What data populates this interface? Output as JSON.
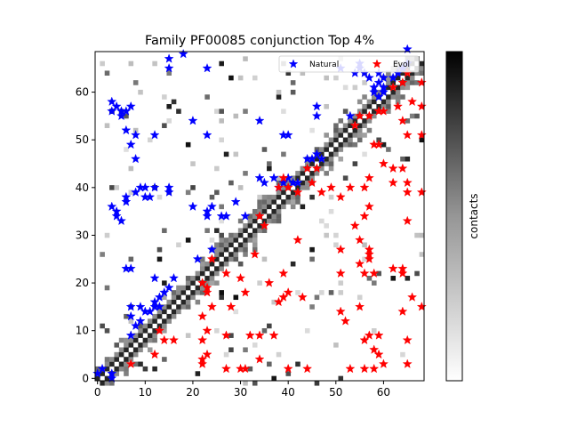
{
  "chart_data": {
    "type": "heatmap",
    "title": "Family PF00085 conjunction Top 4%",
    "xlim": [
      -0.5,
      68.5
    ],
    "ylim": [
      68.5,
      -0.5
    ],
    "xticks": [
      0,
      10,
      20,
      30,
      40,
      50,
      60
    ],
    "yticks": [
      0,
      10,
      20,
      30,
      40,
      50,
      60
    ],
    "colorbar_label": "contacts",
    "colormap": "Greys",
    "legend": {
      "location": "upper right",
      "entries": [
        {
          "label": "Natural",
          "color": "#0000ff",
          "marker": "star"
        },
        {
          "label": "Evol",
          "color": "#ff0000",
          "marker": "star"
        }
      ]
    },
    "series": [
      {
        "name": "Natural",
        "color": "#0000ff",
        "points": [
          [
            0,
            1
          ],
          [
            1,
            2
          ],
          [
            3,
            1
          ],
          [
            3,
            0
          ],
          [
            7,
            9
          ],
          [
            8,
            11
          ],
          [
            9,
            12
          ],
          [
            7,
            13
          ],
          [
            7,
            15
          ],
          [
            9,
            15
          ],
          [
            10,
            14
          ],
          [
            11,
            14
          ],
          [
            12,
            15
          ],
          [
            12,
            16
          ],
          [
            13,
            15
          ],
          [
            13,
            17
          ],
          [
            14,
            18
          ],
          [
            15,
            19
          ],
          [
            16,
            21
          ],
          [
            12,
            21
          ],
          [
            7,
            23
          ],
          [
            6,
            23
          ],
          [
            21,
            25
          ],
          [
            24,
            27
          ],
          [
            23,
            34
          ],
          [
            23,
            35
          ],
          [
            24,
            36
          ],
          [
            26,
            34
          ],
          [
            27,
            34
          ],
          [
            31,
            34
          ],
          [
            29,
            37
          ],
          [
            20,
            36
          ],
          [
            5,
            33
          ],
          [
            4,
            34
          ],
          [
            4,
            35
          ],
          [
            3,
            36
          ],
          [
            6,
            37
          ],
          [
            6,
            38
          ],
          [
            8,
            39
          ],
          [
            9,
            40
          ],
          [
            10,
            40
          ],
          [
            11,
            38
          ],
          [
            12,
            40
          ],
          [
            15,
            39
          ],
          [
            15,
            40
          ],
          [
            10,
            38
          ],
          [
            38,
            40
          ],
          [
            39,
            41
          ],
          [
            37,
            42
          ],
          [
            40,
            42
          ],
          [
            41,
            41
          ],
          [
            42,
            41
          ],
          [
            34,
            42
          ],
          [
            35,
            41
          ],
          [
            44,
            46
          ],
          [
            45,
            46
          ],
          [
            46,
            47
          ],
          [
            47,
            46
          ],
          [
            8,
            46
          ],
          [
            7,
            49
          ],
          [
            8,
            51
          ],
          [
            12,
            51
          ],
          [
            23,
            51
          ],
          [
            20,
            54
          ],
          [
            34,
            54
          ],
          [
            39,
            51
          ],
          [
            40,
            51
          ],
          [
            46,
            55
          ],
          [
            46,
            57
          ],
          [
            53,
            55
          ],
          [
            3,
            56
          ],
          [
            5,
            55
          ],
          [
            5,
            56
          ],
          [
            6,
            56
          ],
          [
            7,
            57
          ],
          [
            3,
            58
          ],
          [
            4,
            57
          ],
          [
            6,
            52
          ],
          [
            58,
            60
          ],
          [
            59,
            59
          ],
          [
            60,
            60
          ],
          [
            58,
            61
          ],
          [
            59,
            62
          ],
          [
            60,
            61
          ],
          [
            59,
            64
          ],
          [
            57,
            63
          ],
          [
            56,
            64
          ],
          [
            55,
            65
          ],
          [
            54,
            64
          ],
          [
            51,
            65
          ],
          [
            55,
            66
          ],
          [
            60,
            63
          ],
          [
            62,
            63
          ],
          [
            63,
            64
          ],
          [
            65,
            66
          ],
          [
            64,
            65
          ],
          [
            15,
            65
          ],
          [
            15,
            67
          ],
          [
            18,
            68
          ],
          [
            23,
            65
          ],
          [
            65,
            69
          ]
        ]
      },
      {
        "name": "Evol",
        "color": "#ff0000",
        "points": [
          [
            7,
            3
          ],
          [
            12,
            5
          ],
          [
            14,
            8
          ],
          [
            13,
            10
          ],
          [
            16,
            8
          ],
          [
            22,
            3
          ],
          [
            22,
            4
          ],
          [
            23,
            5
          ],
          [
            27,
            2
          ],
          [
            30,
            2
          ],
          [
            31,
            2
          ],
          [
            34,
            4
          ],
          [
            40,
            2
          ],
          [
            44,
            2
          ],
          [
            53,
            2
          ],
          [
            56,
            2
          ],
          [
            58,
            2
          ],
          [
            60,
            3
          ],
          [
            59,
            5
          ],
          [
            58,
            6
          ],
          [
            56,
            8
          ],
          [
            57,
            9
          ],
          [
            59,
            9
          ],
          [
            65,
            8
          ],
          [
            65,
            3
          ],
          [
            37,
            9
          ],
          [
            34,
            9
          ],
          [
            32,
            9
          ],
          [
            27,
            9
          ],
          [
            22,
            8
          ],
          [
            23,
            10
          ],
          [
            22,
            13
          ],
          [
            24,
            15
          ],
          [
            28,
            15
          ],
          [
            23,
            18
          ],
          [
            23,
            19
          ],
          [
            22,
            20
          ],
          [
            24,
            25
          ],
          [
            27,
            22
          ],
          [
            30,
            21
          ],
          [
            31,
            18
          ],
          [
            33,
            26
          ],
          [
            36,
            20
          ],
          [
            38,
            16
          ],
          [
            39,
            17
          ],
          [
            40,
            18
          ],
          [
            43,
            17
          ],
          [
            39,
            22
          ],
          [
            42,
            29
          ],
          [
            35,
            32
          ],
          [
            34,
            34
          ],
          [
            51,
            14
          ],
          [
            51,
            22
          ],
          [
            51,
            27
          ],
          [
            52,
            12
          ],
          [
            55,
            15
          ],
          [
            55,
            24
          ],
          [
            56,
            22
          ],
          [
            58,
            22
          ],
          [
            57,
            25
          ],
          [
            57,
            26
          ],
          [
            57,
            27
          ],
          [
            55,
            29
          ],
          [
            56,
            34
          ],
          [
            57,
            36
          ],
          [
            54,
            32
          ],
          [
            62,
            23
          ],
          [
            64,
            23
          ],
          [
            64,
            22
          ],
          [
            66,
            17
          ],
          [
            64,
            14
          ],
          [
            68,
            15
          ],
          [
            65,
            33
          ],
          [
            65,
            41
          ],
          [
            68,
            39
          ],
          [
            65,
            39
          ],
          [
            62,
            41
          ],
          [
            62,
            44
          ],
          [
            64,
            44
          ],
          [
            60,
            45
          ],
          [
            57,
            42
          ],
          [
            56,
            40
          ],
          [
            53,
            40
          ],
          [
            51,
            38
          ],
          [
            49,
            40
          ],
          [
            47,
            39
          ],
          [
            45,
            41
          ],
          [
            44,
            44
          ],
          [
            46,
            44
          ],
          [
            42,
            39
          ],
          [
            40,
            40
          ],
          [
            38,
            40
          ],
          [
            39,
            42
          ],
          [
            59,
            49
          ],
          [
            58,
            49
          ],
          [
            54,
            53
          ],
          [
            55,
            55
          ],
          [
            57,
            55
          ],
          [
            59,
            56
          ],
          [
            60,
            56
          ],
          [
            63,
            57
          ],
          [
            66,
            58
          ],
          [
            68,
            57
          ],
          [
            64,
            54
          ],
          [
            65,
            51
          ],
          [
            68,
            51
          ],
          [
            62,
            61
          ],
          [
            64,
            62
          ],
          [
            65,
            64
          ],
          [
            68,
            62
          ]
        ]
      }
    ]
  }
}
